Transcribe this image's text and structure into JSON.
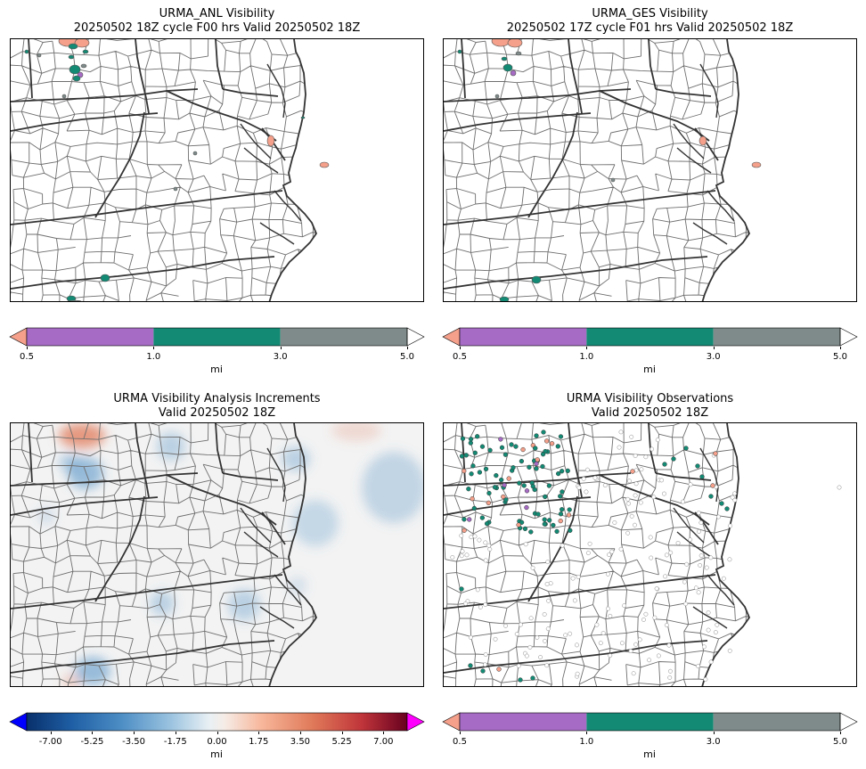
{
  "panels": {
    "anl": {
      "title_line1": "URMA_ANL Visibility",
      "title_line2": "20250502 18Z cycle F00 hrs Valid 20250502 18Z",
      "colorbar": {
        "ticks": [
          "0.5",
          "1.0",
          "3.0",
          "5.0"
        ],
        "unit": "mi",
        "colors": [
          "#f4a08a",
          "#a66bc4",
          "#138a74",
          "#7e8b8a",
          "#ffffff"
        ]
      }
    },
    "ges": {
      "title_line1": "URMA_GES Visibility",
      "title_line2": "20250502 17Z cycle F01 hrs Valid 20250502 18Z",
      "colorbar": {
        "ticks": [
          "0.5",
          "1.0",
          "3.0",
          "5.0"
        ],
        "unit": "mi",
        "colors": [
          "#f4a08a",
          "#a66bc4",
          "#138a74",
          "#7e8b8a",
          "#ffffff"
        ]
      }
    },
    "inc": {
      "title_line1": "URMA Visibility Analysis Increments",
      "title_line2": "Valid 20250502 18Z",
      "colorbar": {
        "ticks": [
          "-7.00",
          "-5.25",
          "-3.50",
          "-1.75",
          "0.00",
          "1.75",
          "3.50",
          "5.25",
          "7.00"
        ],
        "unit": "mi",
        "under_color": "#0000ff",
        "over_color": "#ff00ff",
        "range": [
          -8,
          8
        ]
      }
    },
    "obs": {
      "title_line1": "URMA Visibility Observations",
      "title_line2": "Valid 20250502 18Z",
      "colorbar": {
        "ticks": [
          "0.5",
          "1.0",
          "3.0",
          "5.0"
        ],
        "unit": "mi",
        "colors": [
          "#f4a08a",
          "#a66bc4",
          "#138a74",
          "#7e8b8a",
          "#ffffff"
        ]
      }
    }
  },
  "colors": {
    "county_line": "#6e6e6e",
    "state_line": "#333333",
    "obs_fill": "#1e7a63"
  }
}
